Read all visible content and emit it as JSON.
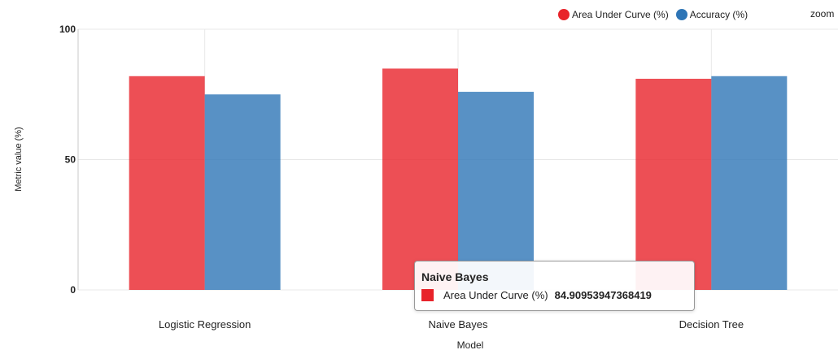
{
  "chart_data": {
    "type": "bar",
    "categories": [
      "Logistic Regression",
      "Naive Bayes",
      "Decision Tree"
    ],
    "series": [
      {
        "name": "Area Under Curve (%)",
        "color": "#e8232a",
        "values": [
          82,
          84.90953947368419,
          81
        ]
      },
      {
        "name": "Accuracy (%)",
        "color": "#2e75b6",
        "values": [
          75,
          76,
          82
        ]
      }
    ],
    "xlabel": "Model",
    "ylabel": "Metric value (%)",
    "ylim": [
      0,
      100
    ],
    "yticks": [
      0,
      50,
      100
    ],
    "grid": true,
    "legend_position": "top-right"
  },
  "controls": {
    "zoom_label": "zoom"
  },
  "tooltip": {
    "title": "Naive Bayes",
    "series_name": "Area Under Curve (%)",
    "value": "84.90953947368419",
    "color": "#e8232a"
  }
}
